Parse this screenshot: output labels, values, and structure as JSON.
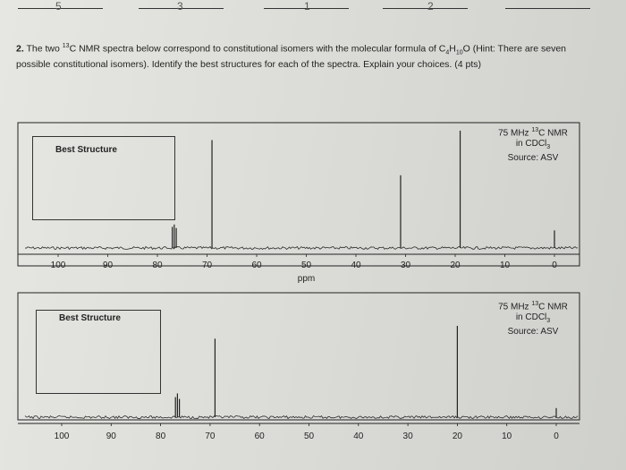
{
  "answers": [
    "5",
    "3",
    "1",
    "2",
    ""
  ],
  "question": {
    "number": "2.",
    "text_before": "The two ",
    "nucleus_mass": "13",
    "text_middle": "C NMR spectra below correspond to constitutional isomers with the molecular formula of C",
    "formula_c": "4",
    "formula_h": "H",
    "formula_h_sub": "10",
    "formula_o": "O",
    "text_after": " (Hint: There are seven possible constitutional isomers). Identify the best structures for each of the spectra. Explain your choices. (4 pts)"
  },
  "spectra": [
    {
      "info_line1_prefix": "75 MHz ",
      "info_line1_sup": "13",
      "info_line1_suffix": "C NMR",
      "info_line2_prefix": "in CDCl",
      "info_line2_sub": "3",
      "info_line3": "Source: ASV",
      "box_label": "Best Structure",
      "axis_label": "ppm",
      "ticks": [
        "100",
        "90",
        "80",
        "70",
        "60",
        "50",
        "40",
        "30",
        "20",
        "10",
        "0"
      ],
      "peaks_ppm": [
        77.0,
        76.6,
        76.2,
        69.0,
        31.0,
        19.0,
        0.0
      ],
      "peak_heights": [
        0.18,
        0.2,
        0.17,
        0.92,
        0.62,
        1.0,
        0.15
      ]
    },
    {
      "info_line1_prefix": "75 MHz ",
      "info_line1_sup": "13",
      "info_line1_suffix": "C NMR",
      "info_line2_prefix": "in CDCl",
      "info_line2_sub": "3",
      "info_line3": "Source: ASV",
      "box_label": "Best Structure",
      "axis_label": "",
      "ticks": [
        "100",
        "90",
        "80",
        "70",
        "60",
        "50",
        "40",
        "30",
        "20",
        "10",
        "0"
      ],
      "peaks_ppm": [
        77.0,
        76.6,
        76.2,
        69.0,
        20.0,
        0.0
      ],
      "peak_heights": [
        0.22,
        0.26,
        0.2,
        0.86,
        1.0,
        0.1
      ]
    }
  ],
  "colors": {
    "ink": "#222222",
    "baseline": "#2a2a2a"
  }
}
